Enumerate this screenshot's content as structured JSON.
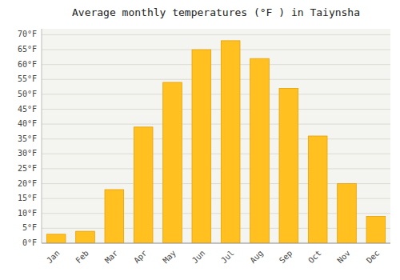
{
  "chart_data": {
    "type": "bar",
    "title": "Average monthly temperatures (°F ) in Taiynsha",
    "categories": [
      "Jan",
      "Feb",
      "Mar",
      "Apr",
      "May",
      "Jun",
      "Jul",
      "Aug",
      "Sep",
      "Oct",
      "Nov",
      "Dec"
    ],
    "values": [
      3,
      4,
      18,
      39,
      54,
      65,
      68,
      62,
      52,
      36,
      20,
      9
    ],
    "color": "#FFC020",
    "ylim": [
      0,
      72
    ],
    "yticks": [
      {
        "value": 0,
        "label": "0°F"
      },
      {
        "value": 5,
        "label": "5°F"
      },
      {
        "value": 10,
        "label": "10°F"
      },
      {
        "value": 15,
        "label": "15°F"
      },
      {
        "value": 20,
        "label": "20°F"
      },
      {
        "value": 25,
        "label": "25°F"
      },
      {
        "value": 30,
        "label": "30°F"
      },
      {
        "value": 35,
        "label": "35°F"
      },
      {
        "value": 40,
        "label": "40°F"
      },
      {
        "value": 45,
        "label": "45°F"
      },
      {
        "value": 50,
        "label": "50°F"
      },
      {
        "value": 55,
        "label": "55°F"
      },
      {
        "value": 60,
        "label": "60°F"
      },
      {
        "value": 65,
        "label": "65°F"
      },
      {
        "value": 70,
        "label": "70°F"
      }
    ],
    "grid": true
  }
}
